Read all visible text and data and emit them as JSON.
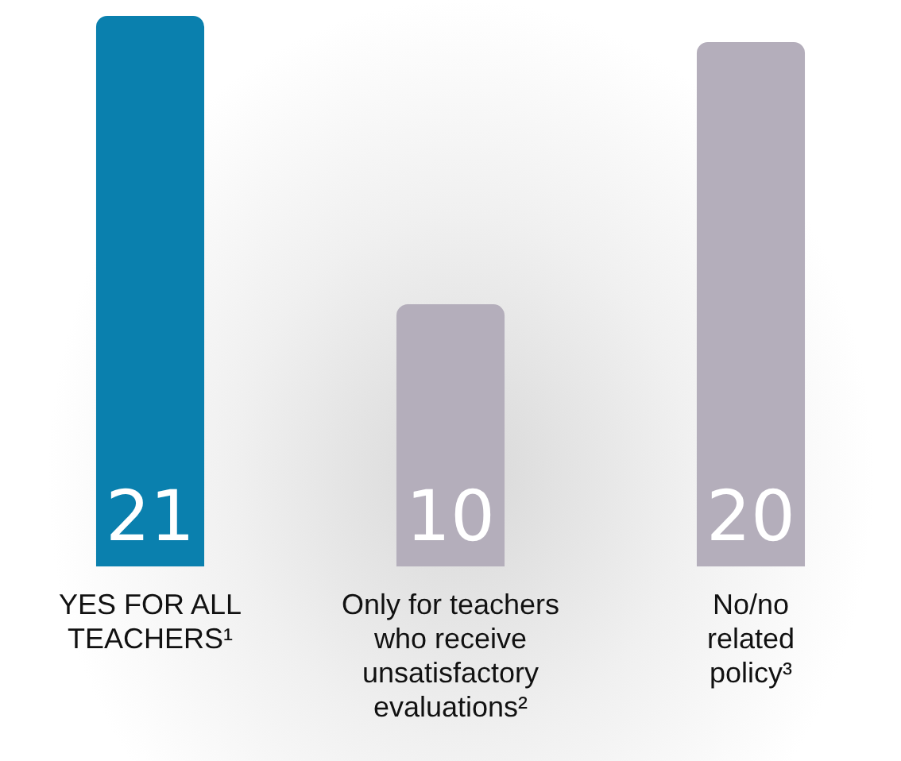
{
  "chart_data": {
    "type": "bar",
    "categories": [
      "YES FOR ALL\nTEACHERS¹",
      "Only for teachers\nwho receive\nunsatisfactory\nevaluations²",
      "No/no\nrelated\npolicy³"
    ],
    "values": [
      21,
      10,
      20
    ],
    "colors": [
      "#0a80ae",
      "#b4aebb",
      "#b4aebb"
    ],
    "data_labels": true,
    "grid": false,
    "legend": false
  }
}
